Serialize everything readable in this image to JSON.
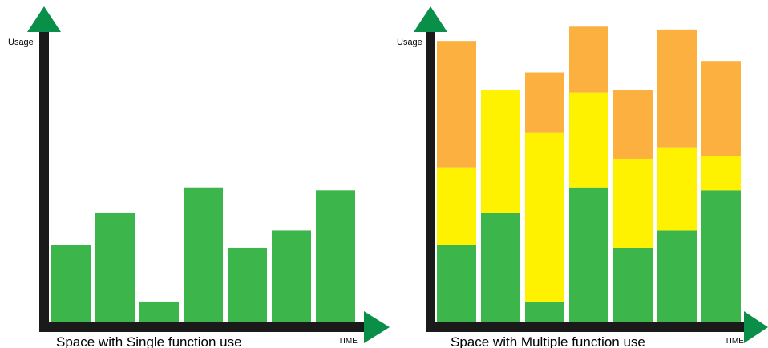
{
  "colors": {
    "single_bar": "#3cb54a",
    "axis": "#1a1a1a",
    "arrow": "#0a8f48",
    "layer_bottom": "#3cb54a",
    "layer_middle": "#fff200",
    "layer_top": "#fbb040"
  },
  "chart_data": [
    {
      "type": "bar",
      "title": "Space with Single function use",
      "xlabel": "TIME",
      "ylabel": "Usage",
      "ylim": [
        0,
        100
      ],
      "categories": [
        "",
        "",
        "",
        "",
        "",
        "",
        ""
      ],
      "values": [
        27,
        38,
        7,
        47,
        26,
        32,
        46
      ],
      "grid": false
    },
    {
      "type": "bar",
      "stacked": true,
      "title": "Space with Multiple function use",
      "xlabel": "TIME",
      "ylabel": "Usage",
      "ylim": [
        0,
        100
      ],
      "categories": [
        "",
        "",
        "",
        "",
        "",
        "",
        ""
      ],
      "series": [
        {
          "values": [
            27,
            38,
            7,
            47,
            26,
            32,
            46
          ]
        },
        {
          "values": [
            27,
            43,
            59,
            33,
            31,
            29,
            12
          ]
        },
        {
          "values": [
            44,
            0,
            21,
            23,
            24,
            41,
            33
          ]
        }
      ],
      "grid": false
    }
  ]
}
